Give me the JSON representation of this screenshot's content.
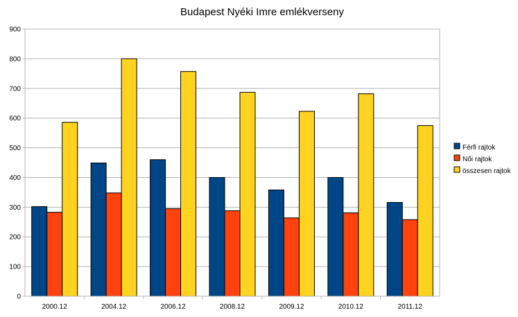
{
  "chart_data": {
    "type": "bar",
    "title": "Budapest Nyéki Imre emlékverseny",
    "xlabel": "",
    "ylabel": "",
    "categories": [
      "2000.12",
      "2004.12",
      "2006.12",
      "2008.12",
      "2009.12",
      "2010.12",
      "2011.12"
    ],
    "series": [
      {
        "name": "Férfi rajtok",
        "color": "#004586",
        "values": [
          302,
          449,
          460,
          400,
          358,
          400,
          316
        ]
      },
      {
        "name": "Női rajtok",
        "color": "#ff420e",
        "values": [
          283,
          348,
          295,
          288,
          264,
          281,
          258
        ]
      },
      {
        "name": "összesen rajtok",
        "color": "#ffd320",
        "values": [
          586,
          800,
          757,
          687,
          623,
          682,
          575
        ]
      }
    ],
    "ylim": [
      0,
      900
    ],
    "yticks": [
      0,
      100,
      200,
      300,
      400,
      500,
      600,
      700,
      800,
      900
    ],
    "grid": true,
    "legend_position": "right"
  }
}
